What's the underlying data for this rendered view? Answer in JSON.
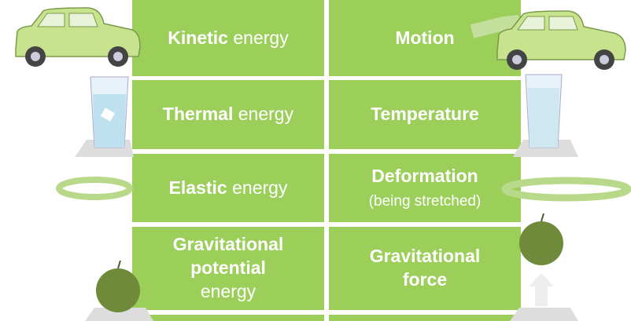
{
  "rows": [
    {
      "left": {
        "bold": "Kinetic",
        "normal": "energy"
      },
      "right": {
        "bold": "Motion"
      }
    },
    {
      "left": {
        "bold": "Thermal",
        "normal": "energy"
      },
      "right": {
        "bold": "Temperature"
      }
    },
    {
      "left": {
        "bold": "Elastic",
        "normal": "energy"
      },
      "right": {
        "bold": "Deformation",
        "normal": "(being stretched)"
      }
    },
    {
      "left": {
        "bold": "Gravitational potential",
        "normal": "energy"
      },
      "right": {
        "bold": "Gravitational force"
      }
    }
  ]
}
